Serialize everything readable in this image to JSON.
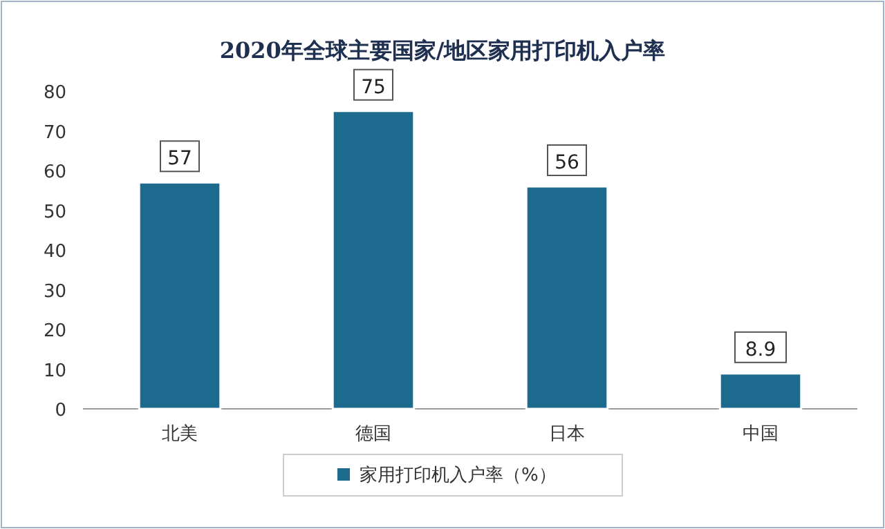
{
  "chart_data": {
    "type": "bar",
    "title": "2020年全球主要国家/地区家用打印机入户率",
    "categories": [
      "北美",
      "德国",
      "日本",
      "中国"
    ],
    "series": [
      {
        "name": "家用打印机入户率（%）",
        "color": "#1c6a8e",
        "values": [
          57,
          75,
          56,
          8.9
        ]
      }
    ],
    "ylim": [
      0,
      80
    ],
    "yticks": [
      0,
      10,
      20,
      30,
      40,
      50,
      60,
      70,
      80
    ],
    "data_labels": true,
    "legend": "bottom"
  }
}
